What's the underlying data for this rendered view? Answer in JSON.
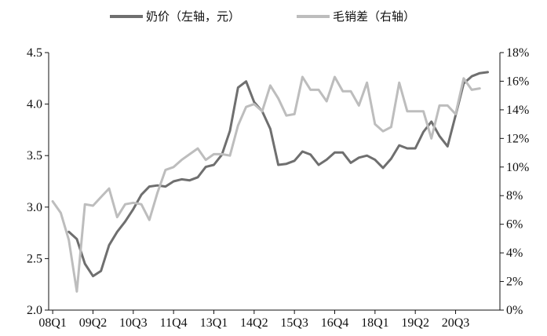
{
  "chart_data": {
    "type": "line",
    "legend_position": "top",
    "grid": false,
    "x_tick_labels": [
      "08Q1",
      "09Q2",
      "10Q3",
      "11Q4",
      "13Q1",
      "14Q2",
      "15Q3",
      "16Q4",
      "18Q1",
      "19Q2",
      "20Q3"
    ],
    "left_axis": {
      "ylim": [
        2.0,
        4.5
      ],
      "ticks": [
        "2.0",
        "2.5",
        "3.0",
        "3.5",
        "4.0",
        "4.5"
      ]
    },
    "right_axis": {
      "ylim": [
        0,
        18
      ],
      "ticks": [
        "0%",
        "2%",
        "4%",
        "6%",
        "8%",
        "10%",
        "12%",
        "14%",
        "16%",
        "18%"
      ]
    },
    "series": [
      {
        "name": "奶价（左轴，元）",
        "axis": "left",
        "color": "#6f6f6f",
        "x": [
          2,
          3,
          4,
          5,
          6,
          7,
          8,
          9,
          10,
          11,
          12,
          13,
          14,
          15,
          16,
          17,
          18,
          19,
          20,
          21,
          22,
          23,
          24,
          25,
          26,
          27,
          28,
          29,
          30,
          31,
          32,
          33,
          34,
          35,
          36,
          37,
          38,
          39,
          40,
          41,
          42,
          43,
          44,
          45,
          46,
          47,
          48,
          49,
          50,
          51,
          52,
          53,
          54
        ],
        "values": [
          2.76,
          2.69,
          2.45,
          2.33,
          2.38,
          2.63,
          2.76,
          2.86,
          2.98,
          3.12,
          3.2,
          3.21,
          3.2,
          3.25,
          3.27,
          3.26,
          3.29,
          3.39,
          3.41,
          3.51,
          3.74,
          4.16,
          4.22,
          4.02,
          3.93,
          3.76,
          3.41,
          3.42,
          3.45,
          3.54,
          3.51,
          3.41,
          3.46,
          3.53,
          3.53,
          3.43,
          3.48,
          3.5,
          3.46,
          3.38,
          3.47,
          3.6,
          3.57,
          3.57,
          3.73,
          3.83,
          3.69,
          3.59,
          3.89,
          4.2,
          4.27,
          4.3,
          4.31
        ]
      },
      {
        "name": "毛销差（右轴）",
        "axis": "right",
        "color": "#bdbdbd",
        "x": [
          0,
          1,
          2,
          3,
          4,
          5,
          6,
          7,
          8,
          9,
          10,
          11,
          12,
          13,
          14,
          15,
          16,
          17,
          18,
          19,
          20,
          21,
          22,
          23,
          24,
          25,
          26,
          27,
          28,
          29,
          30,
          31,
          32,
          33,
          34,
          35,
          36,
          37,
          38,
          39,
          40,
          41,
          42,
          43,
          44,
          45,
          46,
          47,
          48,
          49,
          50,
          51,
          52,
          53
        ],
        "values": [
          7.6,
          6.8,
          4.9,
          1.3,
          7.4,
          7.3,
          7.9,
          8.5,
          6.5,
          7.4,
          7.5,
          7.4,
          6.3,
          8.2,
          9.8,
          10.0,
          10.5,
          10.9,
          11.3,
          10.5,
          10.9,
          10.9,
          10.8,
          12.9,
          14.2,
          14.4,
          13.9,
          15.7,
          14.8,
          13.6,
          13.7,
          16.3,
          15.4,
          15.4,
          14.6,
          16.3,
          15.3,
          15.3,
          14.3,
          15.9,
          13.0,
          12.5,
          12.8,
          15.9,
          13.9,
          13.9,
          13.9,
          12.0,
          14.3,
          14.3,
          13.7,
          16.2,
          15.4,
          15.5
        ]
      }
    ]
  }
}
